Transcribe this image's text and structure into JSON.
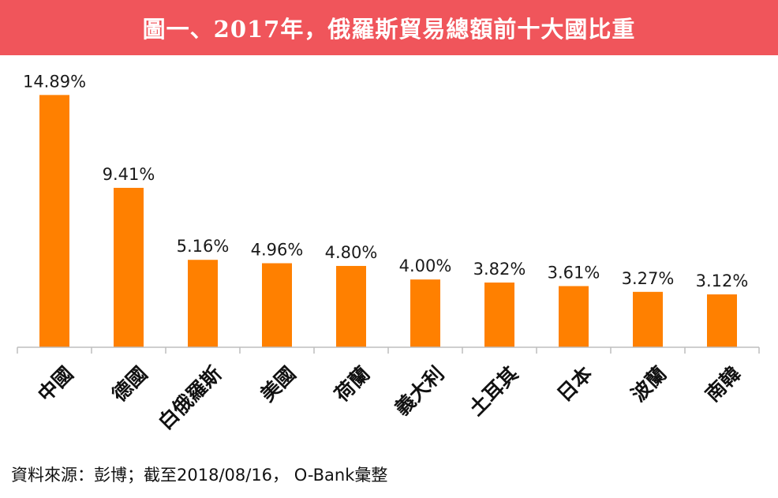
{
  "header": {
    "title": "圖一、2017年，俄羅斯貿易總額前十大國比重"
  },
  "footer": {
    "source": "資料來源：彭博；截至2018/08/16， O-Bank彙整"
  },
  "colors": {
    "bar": "#ff8000",
    "title_bg": "#f0555b",
    "axis": "#bdbdbd"
  },
  "chart_data": {
    "type": "bar",
    "title": "圖一、2017年，俄羅斯貿易總額前十大國比重",
    "xlabel": "",
    "ylabel": "",
    "categories": [
      "中國",
      "德國",
      "白俄羅斯",
      "美國",
      "荷蘭",
      "義大利",
      "土耳其",
      "日本",
      "波蘭",
      "南韓"
    ],
    "values": [
      14.89,
      9.41,
      5.16,
      4.96,
      4.8,
      4.0,
      3.82,
      3.61,
      3.27,
      3.12
    ],
    "data_labels": [
      "14.89%",
      "9.41%",
      "5.16%",
      "4.96%",
      "4.80%",
      "4.00%",
      "3.82%",
      "3.61%",
      "3.27%",
      "3.12%"
    ],
    "ylim": [
      0,
      15
    ],
    "grid": false,
    "legend": "none"
  }
}
